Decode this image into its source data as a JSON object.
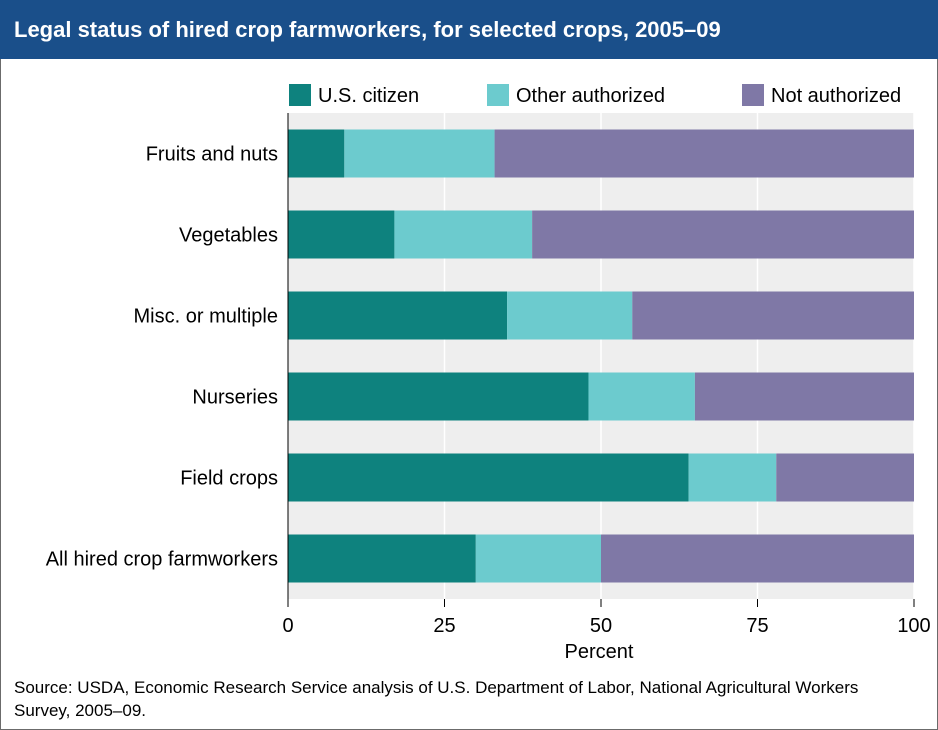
{
  "header": {
    "title": "Legal status of hired crop farmworkers, for selected crops, 2005–09"
  },
  "colors": {
    "title_bg": "#1a4f8a",
    "plot_bg": "#eeeeee",
    "grid": "#ffffff"
  },
  "chart_data": {
    "type": "bar",
    "orientation": "horizontal",
    "stacked": true,
    "title": "Legal status of hired crop farmworkers, for selected crops, 2005–09",
    "xlabel": "Percent",
    "ylabel": "",
    "xlim": [
      0,
      100
    ],
    "xticks": [
      0,
      25,
      50,
      75,
      100
    ],
    "grid": true,
    "legend_position": "top-right",
    "categories": [
      "Fruits and nuts",
      "Vegetables",
      "Misc. or multiple",
      "Nurseries",
      "Field crops",
      "All hired crop farmworkers"
    ],
    "series": [
      {
        "name": "U.S. citizen",
        "color": "#0e827e",
        "values": [
          9,
          17,
          35,
          48,
          64,
          30
        ]
      },
      {
        "name": "Other authorized",
        "color": "#6ccbce",
        "values": [
          24,
          22,
          20,
          17,
          14,
          20
        ]
      },
      {
        "name": "Not authorized",
        "color": "#7f78a6",
        "values": [
          67,
          61,
          45,
          35,
          22,
          50
        ]
      }
    ]
  },
  "footer": {
    "source": "Source: USDA, Economic Research Service analysis of U.S. Department of Labor, National Agricultural Workers Survey, 2005–09."
  }
}
